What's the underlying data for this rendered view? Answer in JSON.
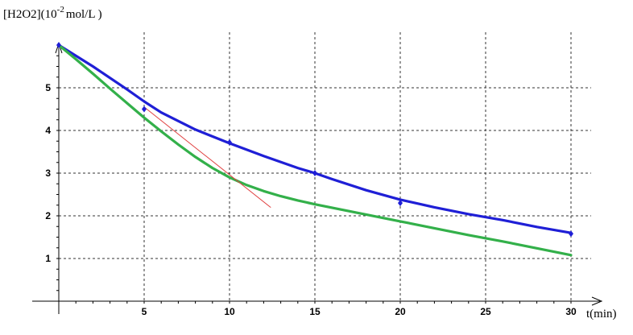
{
  "chart_data": {
    "type": "line",
    "ylabel": {
      "prefix": "[H2O2](10",
      "sup": "-2",
      "suffix": "mol/L )"
    },
    "xlabel": "t(min)",
    "xlim": [
      0,
      30
    ],
    "ylim": [
      0,
      6
    ],
    "x_ticks": [
      5,
      10,
      15,
      20,
      25,
      30
    ],
    "y_ticks": [
      1,
      2,
      3,
      4,
      5
    ],
    "grid": true,
    "series": [
      {
        "color": "#1f1fd6",
        "points": [
          [
            0,
            6.0
          ],
          [
            2,
            5.5
          ],
          [
            4,
            4.96
          ],
          [
            5,
            4.68
          ],
          [
            6,
            4.42
          ],
          [
            8,
            4.02
          ],
          [
            10,
            3.7
          ],
          [
            12,
            3.4
          ],
          [
            14,
            3.12
          ],
          [
            15,
            3.0
          ],
          [
            16,
            2.86
          ],
          [
            18,
            2.6
          ],
          [
            20,
            2.38
          ],
          [
            22,
            2.2
          ],
          [
            24,
            2.04
          ],
          [
            26,
            1.9
          ],
          [
            28,
            1.74
          ],
          [
            30,
            1.6
          ]
        ]
      },
      {
        "color": "#33b04a",
        "points": [
          [
            0,
            6.0
          ],
          [
            1,
            5.67
          ],
          [
            2,
            5.33
          ],
          [
            3,
            4.98
          ],
          [
            4,
            4.64
          ],
          [
            5,
            4.3
          ],
          [
            6,
            3.98
          ],
          [
            7,
            3.67
          ],
          [
            8,
            3.38
          ],
          [
            9,
            3.12
          ],
          [
            10,
            2.9
          ],
          [
            11,
            2.72
          ],
          [
            12,
            2.58
          ],
          [
            13,
            2.46
          ],
          [
            14,
            2.36
          ],
          [
            15,
            2.27
          ],
          [
            16,
            2.19
          ],
          [
            18,
            2.03
          ],
          [
            20,
            1.87
          ],
          [
            22,
            1.71
          ],
          [
            24,
            1.55
          ],
          [
            26,
            1.4
          ],
          [
            28,
            1.24
          ],
          [
            30,
            1.08
          ]
        ]
      },
      {
        "color": "#e04040",
        "points": [
          [
            5,
            4.55
          ],
          [
            12.4,
            2.2
          ]
        ]
      }
    ],
    "markers": {
      "color": "#1f1fd6",
      "points": [
        [
          0,
          6.0
        ],
        [
          5,
          4.5
        ],
        [
          10,
          3.72
        ],
        [
          15,
          3.0
        ],
        [
          20,
          2.3
        ],
        [
          30,
          1.58
        ]
      ]
    }
  }
}
